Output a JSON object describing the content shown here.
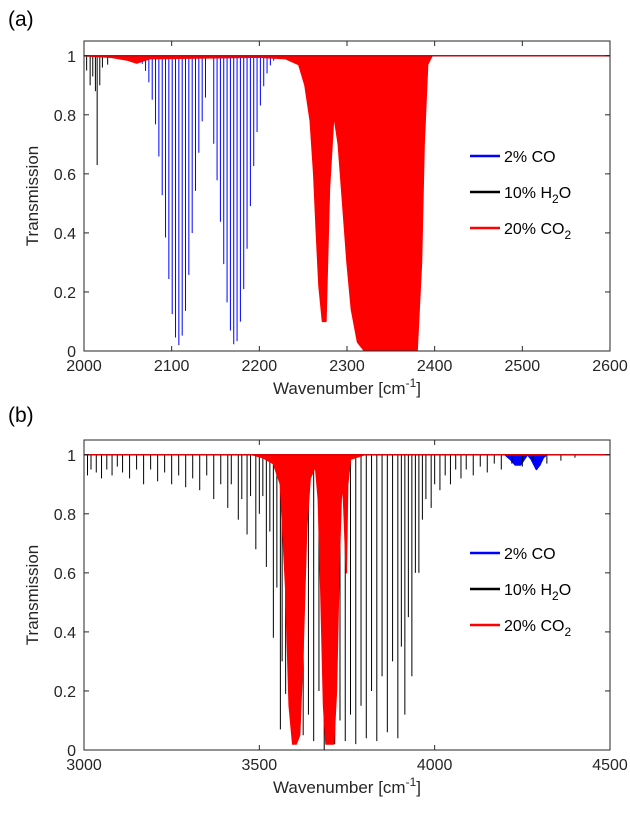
{
  "colors": {
    "co": "#0000ff",
    "h2o": "#000000",
    "co2": "#ff0000",
    "axis": "#262626"
  },
  "chart_data": [
    {
      "type": "line",
      "panel_label": "(a)",
      "xlabel_main": "Wavenumber [cm",
      "xlabel_sup": "-1",
      "xlabel_end": "]",
      "ylabel": "Transmission",
      "xlim": [
        2000,
        2600
      ],
      "ylim": [
        0,
        1.05
      ],
      "xticks": [
        "2000",
        "2100",
        "2200",
        "2300",
        "2400",
        "2500",
        "2600"
      ],
      "yticks": [
        "0",
        "0.2",
        "0.4",
        "0.6",
        "0.8",
        "1"
      ],
      "legend_position": "right",
      "legend": [
        {
          "key": "co",
          "label": "2% CO",
          "sub": ""
        },
        {
          "key": "h2o",
          "label": "10% H",
          "sub": "2",
          "tail": "O"
        },
        {
          "key": "co2",
          "label": "20% CO",
          "sub": "2",
          "tail": ""
        }
      ],
      "series": [
        {
          "key": "co",
          "type": "lines",
          "branches": [
            {
              "from": 2055,
              "to": 2140,
              "center": 2108,
              "width": 22,
              "depth": 0.98,
              "spacing": 3.8
            },
            {
              "from": 2148,
              "to": 2240,
              "center": 2172,
              "width": 22,
              "depth": 0.98,
              "spacing": 3.8
            }
          ]
        },
        {
          "key": "h2o",
          "type": "spikes",
          "lines": [
            [
              2003,
              0.95
            ],
            [
              2007,
              0.9
            ],
            [
              2010,
              0.93
            ],
            [
              2013,
              0.88
            ],
            [
              2015,
              0.63
            ],
            [
              2018,
              0.9
            ],
            [
              2021,
              0.96
            ],
            [
              2027,
              0.97
            ]
          ]
        },
        {
          "key": "co2",
          "type": "band",
          "points": [
            [
              2000,
              1.0
            ],
            [
              2030,
              0.995
            ],
            [
              2050,
              0.985
            ],
            [
              2060,
              0.975
            ],
            [
              2075,
              0.99
            ],
            [
              2200,
              0.995
            ],
            [
              2230,
              0.99
            ],
            [
              2245,
              0.97
            ],
            [
              2252,
              0.9
            ],
            [
              2258,
              0.78
            ],
            [
              2262,
              0.6
            ],
            [
              2265,
              0.4
            ],
            [
              2268,
              0.22
            ],
            [
              2272,
              0.1
            ],
            [
              2276,
              0.1
            ],
            [
              2280,
              0.55
            ],
            [
              2285,
              0.8
            ],
            [
              2290,
              0.7
            ],
            [
              2295,
              0.5
            ],
            [
              2300,
              0.3
            ],
            [
              2305,
              0.14
            ],
            [
              2312,
              0.03
            ],
            [
              2320,
              0.0
            ],
            [
              2380,
              0.0
            ],
            [
              2385,
              0.3
            ],
            [
              2388,
              0.7
            ],
            [
              2392,
              0.97
            ],
            [
              2397,
              1.0
            ],
            [
              2600,
              1.0
            ]
          ]
        }
      ]
    },
    {
      "type": "line",
      "panel_label": "(b)",
      "xlabel_main": "Wavenumber [cm",
      "xlabel_sup": "-1",
      "xlabel_end": "]",
      "ylabel": "Transmission",
      "xlim": [
        3000,
        4500
      ],
      "ylim": [
        0,
        1.05
      ],
      "xticks": [
        "3000",
        "3500",
        "4000",
        "4500"
      ],
      "yticks": [
        "0",
        "0.2",
        "0.4",
        "0.6",
        "0.8",
        "1"
      ],
      "legend_position": "right",
      "legend": [
        {
          "key": "co",
          "label": "2% CO",
          "sub": ""
        },
        {
          "key": "h2o",
          "label": "10% H",
          "sub": "2",
          "tail": "O"
        },
        {
          "key": "co2",
          "label": "20% CO",
          "sub": "2",
          "tail": ""
        }
      ],
      "series": [
        {
          "key": "co",
          "type": "band",
          "points": [
            [
              3000,
              1.0
            ],
            [
              4200,
              1.0
            ],
            [
              4215,
              0.985
            ],
            [
              4230,
              0.965
            ],
            [
              4245,
              0.965
            ],
            [
              4256,
              0.985
            ],
            [
              4265,
              1.0
            ],
            [
              4275,
              0.985
            ],
            [
              4290,
              0.95
            ],
            [
              4300,
              0.965
            ],
            [
              4310,
              0.99
            ],
            [
              4320,
              1.0
            ],
            [
              4500,
              1.0
            ]
          ]
        },
        {
          "key": "h2o",
          "type": "spikes",
          "lines": [
            [
              3010,
              0.93
            ],
            [
              3020,
              0.95
            ],
            [
              3035,
              0.94
            ],
            [
              3050,
              0.92
            ],
            [
              3065,
              0.95
            ],
            [
              3080,
              0.93
            ],
            [
              3095,
              0.96
            ],
            [
              3110,
              0.94
            ],
            [
              3130,
              0.92
            ],
            [
              3150,
              0.95
            ],
            [
              3170,
              0.9
            ],
            [
              3190,
              0.95
            ],
            [
              3210,
              0.91
            ],
            [
              3230,
              0.94
            ],
            [
              3250,
              0.9
            ],
            [
              3270,
              0.93
            ],
            [
              3290,
              0.89
            ],
            [
              3310,
              0.92
            ],
            [
              3330,
              0.88
            ],
            [
              3350,
              0.93
            ],
            [
              3370,
              0.85
            ],
            [
              3390,
              0.9
            ],
            [
              3410,
              0.82
            ],
            [
              3420,
              0.9
            ],
            [
              3440,
              0.78
            ],
            [
              3450,
              0.85
            ],
            [
              3465,
              0.73
            ],
            [
              3475,
              0.86
            ],
            [
              3490,
              0.68
            ],
            [
              3500,
              0.8
            ],
            [
              3510,
              0.86
            ],
            [
              3520,
              0.62
            ],
            [
              3530,
              0.74
            ],
            [
              3540,
              0.38
            ],
            [
              3550,
              0.55
            ],
            [
              3560,
              0.07
            ],
            [
              3565,
              0.3
            ],
            [
              3575,
              0.19
            ],
            [
              3585,
              0.4
            ],
            [
              3600,
              0.1
            ],
            [
              3610,
              0.3
            ],
            [
              3625,
              0.05
            ],
            [
              3640,
              0.12
            ],
            [
              3655,
              0.03
            ],
            [
              3670,
              0.2
            ],
            [
              3685,
              0.0
            ],
            [
              3700,
              0.15
            ],
            [
              3715,
              0.02
            ],
            [
              3730,
              0.1
            ],
            [
              3745,
              0.03
            ],
            [
              3760,
              0.12
            ],
            [
              3775,
              0.02
            ],
            [
              3790,
              0.15
            ],
            [
              3805,
              0.04
            ],
            [
              3820,
              0.2
            ],
            [
              3835,
              0.03
            ],
            [
              3850,
              0.25
            ],
            [
              3865,
              0.06
            ],
            [
              3880,
              0.3
            ],
            [
              3895,
              0.04
            ],
            [
              3905,
              0.35
            ],
            [
              3915,
              0.12
            ],
            [
              3925,
              0.45
            ],
            [
              3935,
              0.25
            ],
            [
              3945,
              0.6
            ],
            [
              3955,
              0.6
            ],
            [
              3965,
              0.78
            ],
            [
              3975,
              0.85
            ],
            [
              3990,
              0.82
            ],
            [
              4000,
              0.9
            ],
            [
              4015,
              0.88
            ],
            [
              4030,
              0.93
            ],
            [
              4045,
              0.9
            ],
            [
              4060,
              0.95
            ],
            [
              4075,
              0.92
            ],
            [
              4090,
              0.95
            ],
            [
              4110,
              0.93
            ],
            [
              4130,
              0.96
            ],
            [
              4150,
              0.94
            ],
            [
              4170,
              0.97
            ],
            [
              4190,
              0.95
            ],
            [
              4220,
              0.97
            ],
            [
              4250,
              0.96
            ],
            [
              4280,
              0.98
            ],
            [
              4320,
              0.97
            ],
            [
              4360,
              0.98
            ],
            [
              4400,
              0.99
            ]
          ]
        },
        {
          "key": "co2",
          "type": "band",
          "points": [
            [
              3000,
              1.0
            ],
            [
              3480,
              1.0
            ],
            [
              3510,
              0.99
            ],
            [
              3540,
              0.97
            ],
            [
              3560,
              0.9
            ],
            [
              3575,
              0.55
            ],
            [
              3585,
              0.15
            ],
            [
              3595,
              0.02
            ],
            [
              3605,
              0.02
            ],
            [
              3615,
              0.05
            ],
            [
              3625,
              0.35
            ],
            [
              3635,
              0.75
            ],
            [
              3645,
              0.92
            ],
            [
              3660,
              0.96
            ],
            [
              3668,
              0.85
            ],
            [
              3675,
              0.55
            ],
            [
              3683,
              0.15
            ],
            [
              3690,
              0.02
            ],
            [
              3712,
              0.02
            ],
            [
              3720,
              0.2
            ],
            [
              3728,
              0.65
            ],
            [
              3735,
              0.9
            ],
            [
              3740,
              0.85
            ],
            [
              3748,
              0.6
            ],
            [
              3752,
              0.9
            ],
            [
              3760,
              0.985
            ],
            [
              3800,
              1.0
            ],
            [
              4500,
              1.0
            ]
          ]
        }
      ]
    }
  ]
}
